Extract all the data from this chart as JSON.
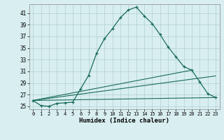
{
  "xlabel": "Humidex (Indice chaleur)",
  "ylabel": "",
  "background_color": "#d8eef0",
  "grid_color": "#b0cfd4",
  "line_color": "#1a6b5a",
  "xlim": [
    -0.5,
    23.5
  ],
  "ylim": [
    24.5,
    42.5
  ],
  "yticks": [
    25,
    27,
    29,
    31,
    33,
    35,
    37,
    39,
    41
  ],
  "xticks": [
    0,
    1,
    2,
    3,
    4,
    5,
    6,
    7,
    8,
    9,
    10,
    11,
    12,
    13,
    14,
    15,
    16,
    17,
    18,
    19,
    20,
    21,
    22,
    23
  ],
  "line1_x": [
    0,
    1,
    2,
    3,
    4,
    5,
    6,
    7,
    8,
    9,
    10,
    11,
    12,
    13,
    14,
    15,
    16,
    17,
    18,
    19,
    20,
    21,
    22,
    23
  ],
  "line1_y": [
    26.0,
    25.1,
    25.0,
    25.5,
    25.6,
    25.7,
    28.0,
    30.3,
    34.1,
    36.6,
    38.3,
    40.2,
    41.5,
    42.0,
    40.5,
    39.2,
    37.3,
    35.2,
    33.5,
    31.8,
    31.2,
    29.2,
    27.2,
    26.5
  ],
  "line2_x": [
    0,
    23
  ],
  "line2_y": [
    26.0,
    26.5
  ],
  "line3_x": [
    0,
    20
  ],
  "line3_y": [
    26.0,
    31.2
  ],
  "line4_x": [
    0,
    23
  ],
  "line4_y": [
    26.0,
    30.2
  ],
  "figsize": [
    3.2,
    2.0
  ],
  "dpi": 100
}
